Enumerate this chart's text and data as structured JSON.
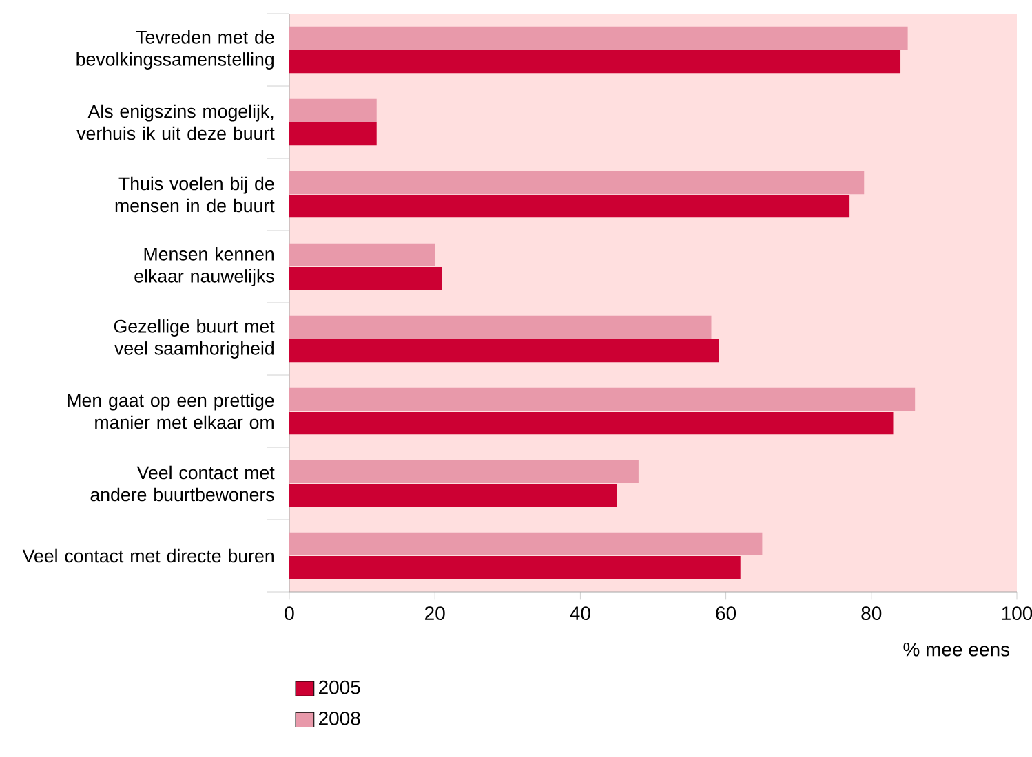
{
  "chart_data": {
    "type": "bar",
    "orientation": "horizontal",
    "categories": [
      "Tevreden met de bevolkingssamenstelling",
      "Als enigszins mogelijk, verhuis ik uit deze buurt",
      "Thuis voelen bij de mensen in de buurt",
      "Mensen kennen elkaar nauwelijks",
      "Gezellige buurt met veel saamhorigheid",
      "Men gaat op een prettige manier met elkaar om",
      "Veel contact met andere buurtbewoners",
      "Veel contact met directe buren"
    ],
    "series": [
      {
        "name": "2005",
        "color": "#cc0033",
        "values": [
          84,
          12,
          77,
          21,
          59,
          83,
          45,
          62
        ]
      },
      {
        "name": "2008",
        "color": "#e899aa",
        "values": [
          85,
          12,
          79,
          20,
          58,
          86,
          48,
          65
        ]
      }
    ],
    "xlim": [
      0,
      100
    ],
    "xticks": [
      0,
      20,
      40,
      60,
      80,
      100
    ],
    "xlabel": "% mee eens",
    "legend": "bottom left",
    "grid": false
  }
}
